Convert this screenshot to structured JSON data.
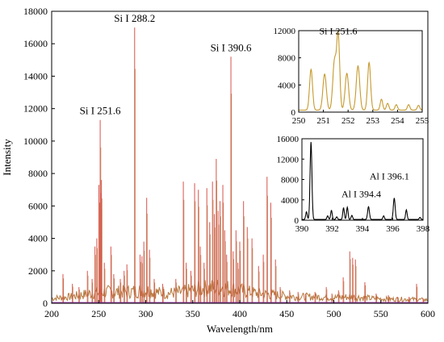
{
  "chart_data": [
    {
      "id": "main",
      "type": "line",
      "xlabel": "Wavelength/nm",
      "ylabel": "Intensity",
      "xlim": [
        200,
        600
      ],
      "ylim": [
        0,
        18000
      ],
      "xticks": [
        200,
        250,
        300,
        350,
        400,
        450,
        500,
        550,
        600
      ],
      "yticks": [
        0,
        2000,
        4000,
        6000,
        8000,
        10000,
        12000,
        14000,
        16000,
        18000
      ],
      "grid": false,
      "legend": "none",
      "colors": {
        "spectrum": "#b5793e",
        "lines": "#d9534a"
      },
      "peak_annotations": [
        {
          "label": "Si I 251.6",
          "x": 251.6,
          "y": 11300
        },
        {
          "label": "Si I 288.2",
          "x": 288.2,
          "y": 17000
        },
        {
          "label": "Si I 390.6",
          "x": 390.6,
          "y": 15200
        }
      ],
      "lines": [
        {
          "x": 212,
          "y": 1800
        },
        {
          "x": 222,
          "y": 1200
        },
        {
          "x": 229,
          "y": 1000
        },
        {
          "x": 238,
          "y": 2000
        },
        {
          "x": 243,
          "y": 1500
        },
        {
          "x": 246,
          "y": 3500
        },
        {
          "x": 248,
          "y": 4000
        },
        {
          "x": 250.2,
          "y": 7300
        },
        {
          "x": 251.6,
          "y": 11300
        },
        {
          "x": 252.4,
          "y": 6800
        },
        {
          "x": 252.9,
          "y": 7600
        },
        {
          "x": 256,
          "y": 2500
        },
        {
          "x": 263,
          "y": 3500
        },
        {
          "x": 266,
          "y": 1800
        },
        {
          "x": 273,
          "y": 1500
        },
        {
          "x": 277,
          "y": 2000
        },
        {
          "x": 280,
          "y": 2400
        },
        {
          "x": 288.2,
          "y": 17000
        },
        {
          "x": 294,
          "y": 3000
        },
        {
          "x": 296,
          "y": 2900
        },
        {
          "x": 298,
          "y": 3800
        },
        {
          "x": 301,
          "y": 6500
        },
        {
          "x": 304,
          "y": 3300
        },
        {
          "x": 309,
          "y": 1500
        },
        {
          "x": 318,
          "y": 1200
        },
        {
          "x": 332,
          "y": 1500
        },
        {
          "x": 340,
          "y": 7500
        },
        {
          "x": 343,
          "y": 2500
        },
        {
          "x": 348,
          "y": 2000
        },
        {
          "x": 352,
          "y": 7400
        },
        {
          "x": 356,
          "y": 7000
        },
        {
          "x": 358,
          "y": 3500
        },
        {
          "x": 362,
          "y": 2500
        },
        {
          "x": 365,
          "y": 7100
        },
        {
          "x": 368,
          "y": 5000
        },
        {
          "x": 371,
          "y": 7500
        },
        {
          "x": 373,
          "y": 5500
        },
        {
          "x": 375,
          "y": 8900
        },
        {
          "x": 377,
          "y": 5700
        },
        {
          "x": 379,
          "y": 6300
        },
        {
          "x": 382,
          "y": 7300
        },
        {
          "x": 384,
          "y": 4500
        },
        {
          "x": 386,
          "y": 3000
        },
        {
          "x": 390.6,
          "y": 15200
        },
        {
          "x": 393,
          "y": 3200
        },
        {
          "x": 396,
          "y": 4500
        },
        {
          "x": 398,
          "y": 2500
        },
        {
          "x": 400,
          "y": 3800
        },
        {
          "x": 404,
          "y": 6300
        },
        {
          "x": 408,
          "y": 4700
        },
        {
          "x": 413,
          "y": 4000
        },
        {
          "x": 420,
          "y": 2300
        },
        {
          "x": 425,
          "y": 3000
        },
        {
          "x": 429,
          "y": 7800
        },
        {
          "x": 433,
          "y": 6200
        },
        {
          "x": 438,
          "y": 2700
        },
        {
          "x": 443,
          "y": 1000
        },
        {
          "x": 453,
          "y": 800
        },
        {
          "x": 462,
          "y": 700
        },
        {
          "x": 470,
          "y": 600
        },
        {
          "x": 480,
          "y": 700
        },
        {
          "x": 492,
          "y": 1000
        },
        {
          "x": 498,
          "y": 600
        },
        {
          "x": 505,
          "y": 800
        },
        {
          "x": 510,
          "y": 1600
        },
        {
          "x": 517,
          "y": 3200
        },
        {
          "x": 520,
          "y": 2800
        },
        {
          "x": 523,
          "y": 2700
        },
        {
          "x": 533,
          "y": 1300
        },
        {
          "x": 545,
          "y": 600
        },
        {
          "x": 558,
          "y": 500
        },
        {
          "x": 568,
          "y": 400
        },
        {
          "x": 580,
          "y": 400
        },
        {
          "x": 588,
          "y": 1200
        },
        {
          "x": 595,
          "y": 300
        }
      ],
      "baseline": [
        {
          "x": 200,
          "y": 300
        },
        {
          "x": 220,
          "y": 400
        },
        {
          "x": 240,
          "y": 600
        },
        {
          "x": 260,
          "y": 700
        },
        {
          "x": 280,
          "y": 700
        },
        {
          "x": 300,
          "y": 800
        },
        {
          "x": 320,
          "y": 600
        },
        {
          "x": 340,
          "y": 700
        },
        {
          "x": 360,
          "y": 900
        },
        {
          "x": 380,
          "y": 1000
        },
        {
          "x": 400,
          "y": 800
        },
        {
          "x": 420,
          "y": 600
        },
        {
          "x": 440,
          "y": 500
        },
        {
          "x": 460,
          "y": 400
        },
        {
          "x": 480,
          "y": 400
        },
        {
          "x": 500,
          "y": 350
        },
        {
          "x": 520,
          "y": 400
        },
        {
          "x": 540,
          "y": 300
        },
        {
          "x": 560,
          "y": 250
        },
        {
          "x": 580,
          "y": 250
        },
        {
          "x": 600,
          "y": 200
        }
      ]
    },
    {
      "id": "inset_top",
      "type": "line",
      "xlim": [
        250,
        255
      ],
      "ylim": [
        0,
        12000
      ],
      "xticks": [
        250,
        251,
        252,
        253,
        254,
        255
      ],
      "yticks": [
        0,
        4000,
        8000,
        12000
      ],
      "grid": false,
      "color": "#c69a2e",
      "peak_annotations": [
        {
          "label": "Si I 251.6",
          "x": 251.6,
          "y": 11000
        }
      ],
      "peaks": [
        {
          "x": 250.5,
          "y": 6000,
          "w": 0.06
        },
        {
          "x": 251.05,
          "y": 5300,
          "w": 0.07
        },
        {
          "x": 251.45,
          "y": 7200,
          "w": 0.07
        },
        {
          "x": 251.6,
          "y": 10800,
          "w": 0.06
        },
        {
          "x": 251.95,
          "y": 5400,
          "w": 0.07
        },
        {
          "x": 252.4,
          "y": 6500,
          "w": 0.07
        },
        {
          "x": 252.85,
          "y": 7000,
          "w": 0.06
        },
        {
          "x": 253.35,
          "y": 1600,
          "w": 0.05
        },
        {
          "x": 253.6,
          "y": 1000,
          "w": 0.05
        },
        {
          "x": 253.95,
          "y": 800,
          "w": 0.05
        },
        {
          "x": 254.45,
          "y": 800,
          "w": 0.05
        },
        {
          "x": 254.85,
          "y": 700,
          "w": 0.05
        }
      ],
      "baseline_level": 300
    },
    {
      "id": "inset_bottom",
      "type": "line",
      "xlim": [
        390,
        398
      ],
      "ylim": [
        0,
        16000
      ],
      "xticks": [
        390,
        392,
        394,
        396,
        398
      ],
      "yticks": [
        0,
        4000,
        8000,
        12000,
        16000
      ],
      "grid": false,
      "color": "#000000",
      "peak_annotations": [
        {
          "label": "Al I 396.1",
          "x": 396.1,
          "y": 4500
        },
        {
          "label": "Al I 394.4",
          "x": 394.4,
          "y": 2600
        }
      ],
      "peaks": [
        {
          "x": 390.3,
          "y": 1500,
          "w": 0.05
        },
        {
          "x": 390.6,
          "y": 15200,
          "w": 0.06
        },
        {
          "x": 391.7,
          "y": 700,
          "w": 0.05
        },
        {
          "x": 391.95,
          "y": 1800,
          "w": 0.05
        },
        {
          "x": 392.3,
          "y": 500,
          "w": 0.05
        },
        {
          "x": 392.75,
          "y": 2300,
          "w": 0.05
        },
        {
          "x": 393.0,
          "y": 2400,
          "w": 0.05
        },
        {
          "x": 393.3,
          "y": 800,
          "w": 0.05
        },
        {
          "x": 394.4,
          "y": 2500,
          "w": 0.06
        },
        {
          "x": 395.4,
          "y": 700,
          "w": 0.05
        },
        {
          "x": 396.1,
          "y": 4200,
          "w": 0.06
        },
        {
          "x": 396.9,
          "y": 1900,
          "w": 0.05
        },
        {
          "x": 397.8,
          "y": 400,
          "w": 0.05
        }
      ],
      "baseline_level": 150
    }
  ]
}
